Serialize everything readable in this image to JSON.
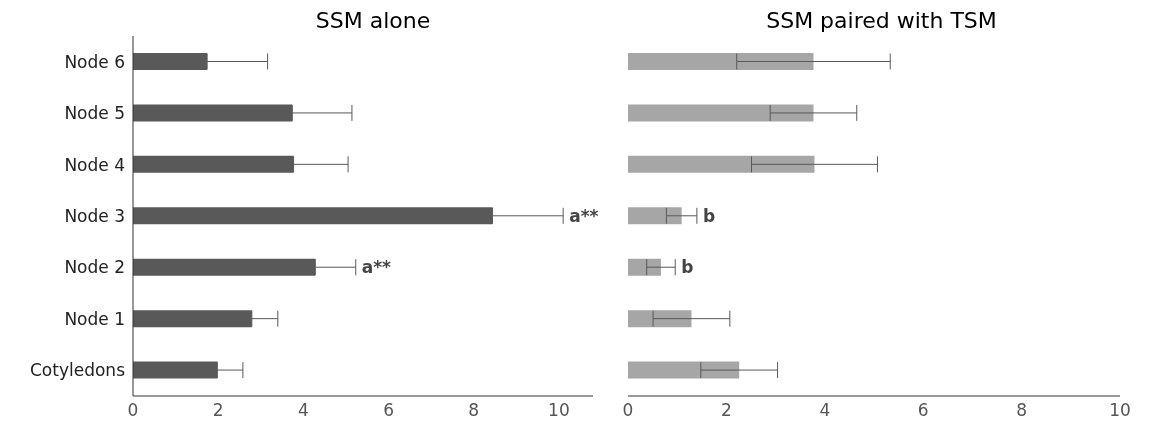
{
  "chart_data": [
    {
      "type": "bar",
      "orientation": "horizontal",
      "title": "SSM alone",
      "categories": [
        "Node 6",
        "Node 5",
        "Node 4",
        "Node 3",
        "Node 2",
        "Node 1",
        "Cotyledons"
      ],
      "values": [
        1.74,
        3.74,
        3.77,
        8.44,
        4.28,
        2.79,
        1.98
      ],
      "errors": [
        [
          1.74,
          3.16
        ],
        [
          3.74,
          5.14
        ],
        [
          3.77,
          5.05
        ],
        [
          8.44,
          10.1
        ],
        [
          4.28,
          5.23
        ],
        [
          2.79,
          3.4
        ],
        [
          1.98,
          2.58
        ]
      ],
      "color": "#595959",
      "xlim": [
        0,
        10.8
      ],
      "xticks": [
        0,
        2,
        4,
        6,
        8,
        10
      ],
      "grid": false,
      "annotations": [
        {
          "text": "a**",
          "x": 10.1,
          "y": "Node 3"
        },
        {
          "text": "a**",
          "x": 5.23,
          "y": "Node 2"
        }
      ]
    },
    {
      "type": "bar",
      "orientation": "horizontal",
      "title": "SSM paired with TSM",
      "categories": [
        "Node 6",
        "Node 5",
        "Node 4",
        "Node 3",
        "Node 2",
        "Node 1",
        "Cotyledons"
      ],
      "values": [
        3.77,
        3.77,
        3.79,
        1.09,
        0.67,
        1.29,
        2.26
      ],
      "errors": [
        1.56,
        0.88,
        1.28,
        0.31,
        0.29,
        0.78,
        0.78
      ],
      "color": "#a6a6a6",
      "xlim": [
        0,
        10
      ],
      "xticks": [
        0,
        2,
        4,
        6,
        8,
        10
      ],
      "grid": false,
      "tick_labels": "x",
      "annotations": [
        {
          "text": "b",
          "x": 1.4,
          "y": "Node 3"
        },
        {
          "text": "b",
          "x": 0.96,
          "y": "Node 2"
        }
      ]
    }
  ]
}
